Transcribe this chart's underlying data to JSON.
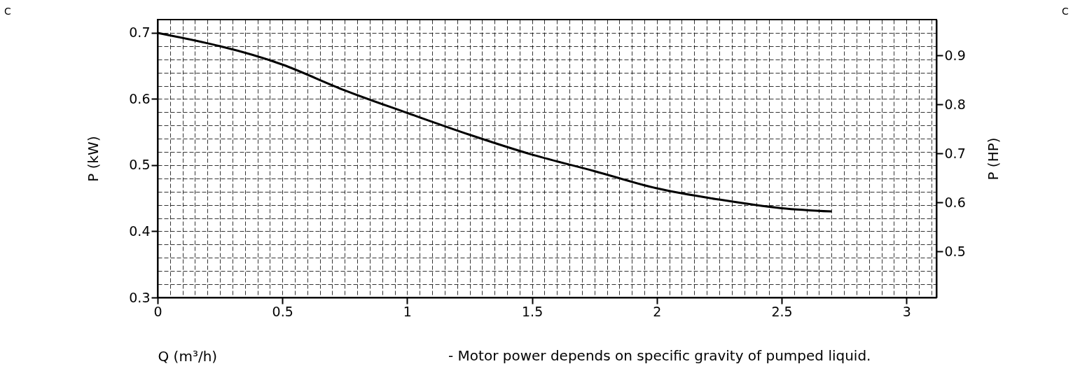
{
  "chart_data": {
    "type": "line",
    "xlabel": "Q (m³/h)",
    "ylabel": "P (kW)",
    "y2label": "P (HP)",
    "annotations": [
      "- Motor power depends on specific gravity of pumped liquid.",
      "C",
      "C"
    ],
    "x": [
      0,
      0.5,
      0.75,
      1,
      1.25,
      1.5,
      1.75,
      2,
      2.25,
      2.5,
      2.7
    ],
    "series": [
      {
        "color": "#000000",
        "values": [
          0.7,
          0.652,
          0.613,
          0.579,
          0.546,
          0.516,
          0.491,
          0.465,
          0.448,
          0.435,
          0.43
        ]
      }
    ],
    "xlim": [
      0,
      3.12
    ],
    "ylim": [
      0.3,
      0.72
    ],
    "y2lim": [
      0.406,
      0.973
    ],
    "xticks": [
      0,
      {
        "value": 0.05,
        "label": null
      },
      {
        "value": 0.1,
        "label": null
      },
      {
        "value": 0.15,
        "label": null
      },
      {
        "value": 0.2,
        "label": null
      },
      {
        "value": 0.25,
        "label": null
      },
      {
        "value": 0.3,
        "label": null
      },
      {
        "value": 0.35,
        "label": null
      },
      {
        "value": 0.4,
        "label": null
      },
      {
        "value": 0.45,
        "label": null
      },
      0.5,
      {
        "value": 0.55,
        "label": null
      },
      {
        "value": 0.6,
        "label": null
      },
      {
        "value": 0.65,
        "label": null
      },
      {
        "value": 0.7,
        "label": null
      },
      {
        "value": 0.75,
        "label": null
      },
      {
        "value": 0.8,
        "label": null
      },
      {
        "value": 0.85,
        "label": null
      },
      {
        "value": 0.9,
        "label": null
      },
      {
        "value": 0.95,
        "label": null
      },
      1,
      {
        "value": 1.05,
        "label": null
      },
      {
        "value": 1.1,
        "label": null
      },
      {
        "value": 1.15,
        "label": null
      },
      {
        "value": 1.2,
        "label": null
      },
      {
        "value": 1.25,
        "label": null
      },
      {
        "value": 1.3,
        "label": null
      },
      {
        "value": 1.35,
        "label": null
      },
      {
        "value": 1.4,
        "label": null
      },
      {
        "value": 1.45,
        "label": null
      },
      1.5,
      {
        "value": 1.55,
        "label": null
      },
      {
        "value": 1.6,
        "label": null
      },
      {
        "value": 1.65,
        "label": null
      },
      {
        "value": 1.7,
        "label": null
      },
      {
        "value": 1.75,
        "label": null
      },
      {
        "value": 1.8,
        "label": null
      },
      {
        "value": 1.85,
        "label": null
      },
      {
        "value": 1.9,
        "label": null
      },
      {
        "value": 1.95,
        "label": null
      },
      2,
      {
        "value": 2.05,
        "label": null
      },
      {
        "value": 2.1,
        "label": null
      },
      {
        "value": 2.15,
        "label": null
      },
      {
        "value": 2.2,
        "label": null
      },
      {
        "value": 2.25,
        "label": null
      },
      {
        "value": 2.3,
        "label": null
      },
      {
        "value": 2.35,
        "label": null
      },
      {
        "value": 2.4,
        "label": null
      },
      {
        "value": 2.45,
        "label": null
      },
      2.5,
      {
        "value": 2.55,
        "label": null
      },
      {
        "value": 2.6,
        "label": null
      },
      {
        "value": 2.65,
        "label": null
      },
      {
        "value": 2.7,
        "label": null
      },
      {
        "value": 2.75,
        "label": null
      },
      {
        "value": 2.8,
        "label": null
      },
      {
        "value": 2.85,
        "label": null
      },
      {
        "value": 2.9,
        "label": null
      },
      {
        "value": 2.95,
        "label": null
      },
      3,
      {
        "value": 3.05,
        "label": null
      },
      {
        "value": 3.1,
        "label": null
      }
    ],
    "yticks": [
      0.3,
      {
        "value": 0.32,
        "label": null
      },
      {
        "value": 0.34,
        "label": null
      },
      {
        "value": 0.36,
        "label": null
      },
      {
        "value": 0.38,
        "label": null
      },
      0.4,
      {
        "value": 0.42,
        "label": null
      },
      {
        "value": 0.44,
        "label": null
      },
      {
        "value": 0.46,
        "label": null
      },
      {
        "value": 0.48,
        "label": null
      },
      0.5,
      {
        "value": 0.52,
        "label": null
      },
      {
        "value": 0.54,
        "label": null
      },
      {
        "value": 0.56,
        "label": null
      },
      {
        "value": 0.58,
        "label": null
      },
      0.6,
      {
        "value": 0.62,
        "label": null
      },
      {
        "value": 0.64,
        "label": null
      },
      {
        "value": 0.66,
        "label": null
      },
      {
        "value": 0.68,
        "label": null
      },
      0.7,
      {
        "value": 0.72,
        "label": null
      }
    ],
    "y2ticks": [
      0.5,
      0.6,
      0.7,
      0.8,
      0.9
    ],
    "grid": true,
    "line_style": "solid"
  }
}
